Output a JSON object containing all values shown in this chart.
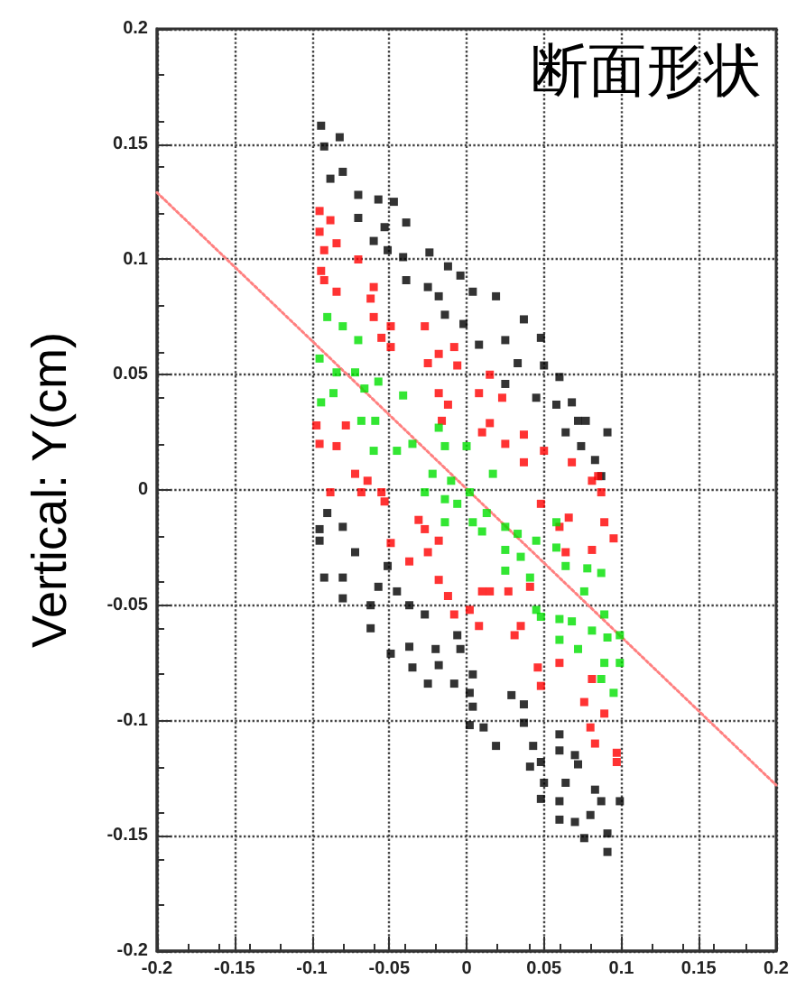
{
  "chart_data": {
    "type": "scatter",
    "title": "断面形状",
    "ylabel": "Vertical: Y(cm)",
    "xlim": [
      -0.2,
      0.2
    ],
    "ylim": [
      -0.2,
      0.2
    ],
    "xticks": [
      -0.2,
      -0.15,
      -0.1,
      -0.05,
      0,
      0.05,
      0.1,
      0.15,
      0.2
    ],
    "yticks": [
      -0.2,
      -0.15,
      -0.1,
      -0.05,
      0,
      0.05,
      0.1,
      0.15,
      0.2
    ],
    "grid": true,
    "marker": "square",
    "series": [
      {
        "color": "#000000",
        "x": [
          -0.094,
          -0.082,
          -0.092,
          -0.08,
          -0.088,
          -0.07,
          -0.057,
          -0.047,
          -0.07,
          -0.053,
          -0.039,
          -0.06,
          -0.051,
          -0.041,
          -0.024,
          -0.012,
          -0.025,
          -0.039,
          -0.004,
          -0.018,
          0.004,
          0.019,
          -0.014,
          -0.002,
          0.008,
          0.025,
          0.037,
          0.048,
          0.033,
          0.025,
          0.05,
          0.06,
          0.045,
          0.058,
          0.068,
          0.072,
          0.064,
          0.077,
          0.091,
          0.074,
          0.083,
          0.087,
          -0.095,
          -0.09,
          -0.08,
          -0.095,
          -0.072,
          -0.092,
          -0.08,
          -0.08,
          -0.062,
          -0.062,
          -0.051,
          -0.057,
          -0.045,
          -0.037,
          -0.027,
          -0.049,
          -0.037,
          -0.035,
          -0.025,
          -0.02,
          -0.018,
          -0.008,
          -0.006,
          -0.004,
          0.004,
          0.002,
          0.004,
          0.002,
          0.011,
          0.019,
          0.029,
          0.037,
          0.037,
          0.043,
          0.041,
          0.048,
          0.05,
          0.048,
          0.06,
          0.06,
          0.07,
          0.064,
          0.06,
          0.06,
          0.07,
          0.08,
          0.083,
          0.087,
          0.099,
          0.076,
          0.091,
          0.091,
          0.072
        ],
        "values": [
          0.158,
          0.153,
          0.149,
          0.138,
          0.135,
          0.128,
          0.126,
          0.125,
          0.118,
          0.114,
          0.116,
          0.108,
          0.104,
          0.101,
          0.103,
          0.097,
          0.088,
          0.091,
          0.093,
          0.084,
          0.086,
          0.084,
          0.076,
          0.072,
          0.063,
          0.065,
          0.074,
          0.066,
          0.055,
          0.046,
          0.054,
          0.049,
          0.04,
          0.037,
          0.038,
          0.03,
          0.025,
          0.03,
          0.025,
          0.019,
          0.013,
          0.006,
          -0.017,
          -0.01,
          -0.016,
          -0.022,
          -0.027,
          -0.038,
          -0.038,
          -0.047,
          -0.05,
          -0.06,
          -0.033,
          -0.042,
          -0.044,
          -0.05,
          -0.054,
          -0.071,
          -0.068,
          -0.077,
          -0.084,
          -0.069,
          -0.076,
          -0.084,
          -0.063,
          -0.069,
          -0.08,
          -0.088,
          -0.094,
          -0.102,
          -0.103,
          -0.111,
          -0.089,
          -0.093,
          -0.101,
          -0.111,
          -0.12,
          -0.118,
          -0.127,
          -0.134,
          -0.106,
          -0.113,
          -0.115,
          -0.127,
          -0.135,
          -0.143,
          -0.144,
          -0.141,
          -0.13,
          -0.135,
          -0.135,
          -0.151,
          -0.149,
          -0.157,
          -0.119
        ]
      },
      {
        "color": "#ff0000",
        "x": [
          -0.095,
          -0.088,
          -0.095,
          -0.092,
          -0.084,
          -0.094,
          -0.092,
          -0.084,
          -0.07,
          -0.06,
          -0.062,
          -0.06,
          -0.049,
          -0.055,
          -0.049,
          -0.027,
          -0.025,
          -0.018,
          -0.008,
          -0.006,
          -0.018,
          -0.012,
          -0.016,
          0.015,
          0.008,
          0.023,
          0.015,
          0.01,
          0.025,
          0.037,
          0.037,
          0.05,
          0.068,
          0.081,
          0.085,
          -0.097,
          -0.095,
          -0.084,
          -0.072,
          -0.064,
          -0.055,
          -0.078,
          -0.088,
          -0.068,
          -0.053,
          -0.031,
          -0.027,
          -0.049,
          -0.037,
          -0.025,
          -0.018,
          -0.018,
          -0.012,
          -0.008,
          0.002,
          0.008,
          0.01,
          0.015,
          0.027,
          0.041,
          0.035,
          0.031,
          0.046,
          0.048,
          0.06,
          0.076,
          0.08,
          0.083,
          0.089,
          0.097,
          0.097,
          0.081,
          0.089,
          0.095,
          0.081,
          0.06,
          0.066,
          0.048,
          0.087,
          0.064
        ],
        "values": [
          0.121,
          0.117,
          0.112,
          0.104,
          0.107,
          0.095,
          0.091,
          0.086,
          0.1,
          0.088,
          0.083,
          0.075,
          0.071,
          0.066,
          0.062,
          0.071,
          0.055,
          0.059,
          0.062,
          0.054,
          0.042,
          0.037,
          0.03,
          0.05,
          0.042,
          0.04,
          0.029,
          0.025,
          0.02,
          0.024,
          0.012,
          0.017,
          0.012,
          0.004,
          0.006,
          0.028,
          0.02,
          0.019,
          0.007,
          0.004,
          -0.001,
          0.028,
          -0.001,
          -0.001,
          -0.005,
          -0.013,
          -0.017,
          -0.023,
          -0.031,
          -0.027,
          -0.022,
          -0.039,
          -0.046,
          -0.054,
          -0.052,
          -0.059,
          -0.044,
          -0.044,
          -0.044,
          -0.042,
          -0.059,
          -0.063,
          -0.077,
          -0.085,
          -0.075,
          -0.092,
          -0.103,
          -0.11,
          -0.097,
          -0.114,
          -0.118,
          -0.082,
          -0.014,
          -0.021,
          -0.026,
          -0.016,
          -0.012,
          -0.006,
          -0.001,
          -0.027
        ]
      },
      {
        "color": "#00e000",
        "x": [
          -0.09,
          -0.08,
          -0.095,
          -0.084,
          -0.07,
          -0.057,
          -0.094,
          -0.086,
          -0.072,
          -0.066,
          -0.068,
          -0.059,
          -0.06,
          -0.041,
          -0.045,
          -0.035,
          -0.018,
          -0.014,
          0.0,
          -0.022,
          -0.01,
          0.017,
          -0.027,
          -0.014,
          -0.006,
          0.002,
          -0.014,
          0.004,
          0.01,
          0.013,
          0.025,
          0.033,
          0.025,
          0.035,
          0.025,
          0.041,
          0.045,
          0.058,
          0.058,
          0.064,
          0.078,
          0.087,
          0.076,
          0.045,
          0.048,
          0.06,
          0.068,
          0.06,
          0.072,
          0.089,
          0.091,
          0.099,
          0.089,
          0.099,
          0.095,
          0.087,
          0.081
        ],
        "values": [
          0.075,
          0.071,
          0.057,
          0.051,
          0.065,
          0.047,
          0.038,
          0.042,
          0.051,
          0.044,
          0.03,
          0.03,
          0.017,
          0.041,
          0.017,
          0.02,
          0.027,
          0.019,
          0.019,
          0.007,
          0.004,
          0.007,
          -0.001,
          -0.004,
          -0.006,
          -0.001,
          -0.014,
          -0.014,
          -0.018,
          -0.01,
          -0.016,
          -0.019,
          -0.026,
          -0.029,
          -0.035,
          -0.038,
          -0.022,
          -0.014,
          -0.025,
          -0.033,
          -0.034,
          -0.036,
          -0.044,
          -0.052,
          -0.055,
          -0.056,
          -0.057,
          -0.065,
          -0.069,
          -0.054,
          -0.064,
          -0.063,
          -0.075,
          -0.075,
          -0.088,
          -0.082,
          -0.061
        ]
      },
      {
        "type": "line",
        "color": "#ff8080",
        "line_style": "dotted",
        "marker": "none",
        "x": [
          -0.2,
          0.2
        ],
        "values": [
          0.129,
          -0.128
        ]
      }
    ]
  }
}
